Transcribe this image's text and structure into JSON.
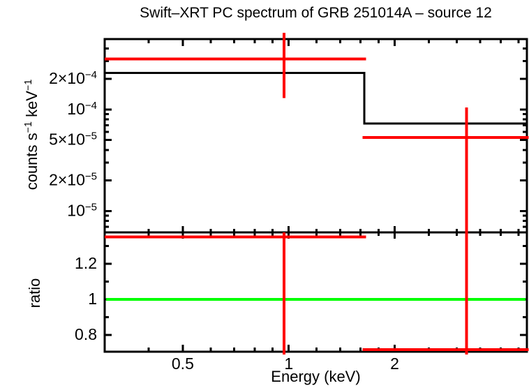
{
  "chart_data": {
    "type": "line",
    "title": "Swift–XRT PC spectrum of GRB 251014A – source 12",
    "xlabel": "Energy (keV)",
    "xscale": "log",
    "xlim": [
      0.3,
      4.75
    ],
    "x_major_ticks": [
      {
        "value": 0.5,
        "label": "0.5"
      },
      {
        "value": 1,
        "label": "1"
      },
      {
        "value": 2,
        "label": "2"
      }
    ],
    "x_minor_ticks": [
      0.4,
      0.6,
      0.7,
      0.8,
      0.9,
      1.2,
      1.4,
      1.6,
      1.8,
      2.5,
      3,
      3.5,
      4,
      4.5
    ],
    "colors": {
      "model": "#000000",
      "data": "#ff0000",
      "reference": "#00ff00",
      "frame": "#000000"
    },
    "panels": [
      {
        "name": "spectrum",
        "ylabel": "counts s^−1 keV^−1",
        "yscale": "log",
        "ylim": [
          6.15e-06,
          0.000495
        ],
        "y_major_ticks": [
          {
            "value": 0.0002,
            "label": "2×10^−4"
          },
          {
            "value": 0.0001,
            "label": "10^−4"
          },
          {
            "value": 5e-05,
            "label": "5×10^−5"
          },
          {
            "value": 2e-05,
            "label": "2×10^−5"
          },
          {
            "value": 1e-05,
            "label": "10^−5"
          }
        ],
        "y_minor_ticks": [
          0.0004,
          0.0003,
          9e-05,
          8e-05,
          7e-05,
          6e-05,
          4e-05,
          3e-05,
          9e-06,
          8e-06,
          7e-06
        ],
        "model_steps": [
          {
            "x_start": 0.3,
            "x_end": 1.64,
            "value": 0.00023
          },
          {
            "x_start": 1.64,
            "x_end": 4.75,
            "value": 7.3e-05
          }
        ],
        "data_points": [
          {
            "x": 0.97,
            "x_start": 0.3,
            "x_end": 1.66,
            "value": 0.000315,
            "err_hi": 0.00057,
            "err_lo": 0.00013
          },
          {
            "x": 3.2,
            "x_start": 1.62,
            "x_end": 4.8,
            "value": 5.3e-05,
            "err_hi": 0.000105,
            "err_lo": 1e-06
          }
        ]
      },
      {
        "name": "ratio",
        "ylabel": "ratio",
        "yscale": "linear",
        "ylim": [
          0.706,
          1.376
        ],
        "y_major_ticks": [
          {
            "value": 1.2,
            "label": "1.2"
          },
          {
            "value": 1,
            "label": "1"
          },
          {
            "value": 0.8,
            "label": "0.8"
          }
        ],
        "y_minor_ticks": [
          1.3,
          1.1,
          0.9
        ],
        "reference_line": {
          "value": 1
        },
        "data_points": [
          {
            "x": 0.97,
            "x_start": 0.3,
            "x_end": 1.66,
            "value": 1.35,
            "err_hi": 1.6,
            "err_lo": 0.45
          },
          {
            "x": 3.2,
            "x_start": 1.62,
            "x_end": 4.8,
            "value": 0.718,
            "err_hi": 1.6,
            "err_lo": 0.45
          }
        ]
      }
    ]
  }
}
